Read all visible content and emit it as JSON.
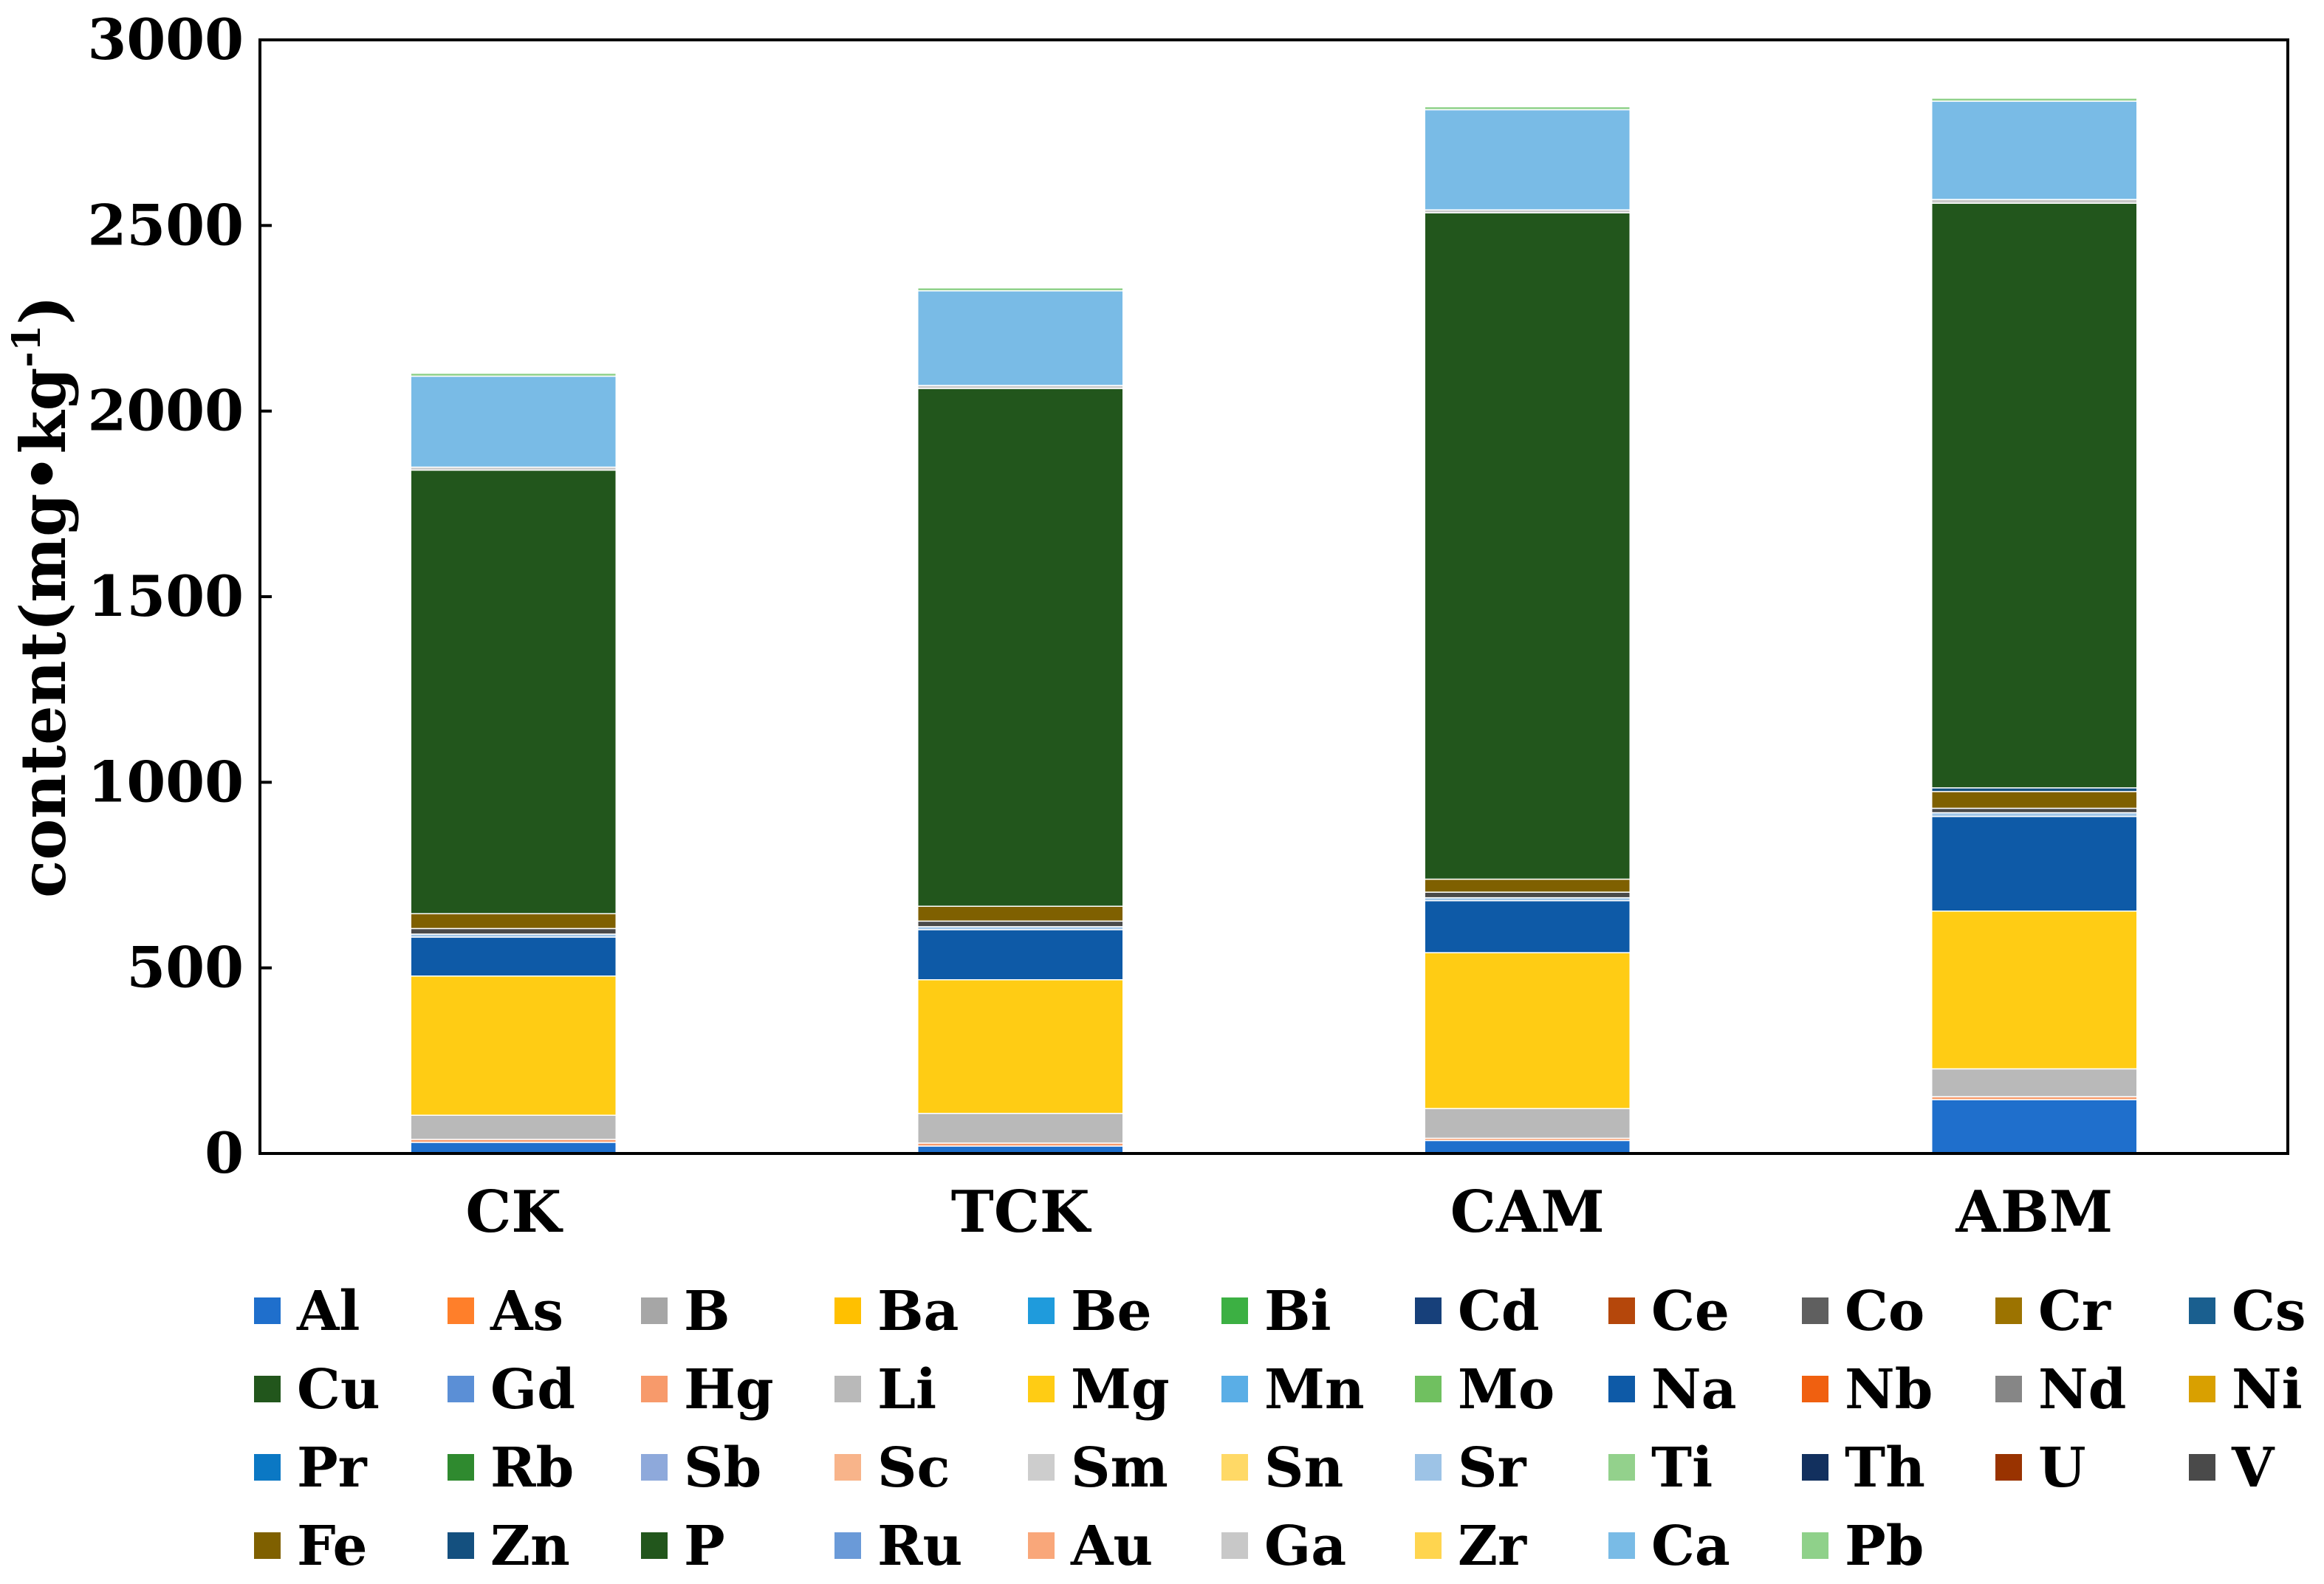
{
  "chart_data": {
    "type": "bar",
    "stacked": true,
    "categories": [
      "CK",
      "TCK",
      "CAM",
      "ABM"
    ],
    "ylabel": "content(mg•kg",
    "ylabel_sup": "-1",
    "ylabel_close": ")",
    "ylim": [
      0,
      3000
    ],
    "yticks": [
      0,
      500,
      1000,
      1500,
      2000,
      2500,
      3000
    ],
    "grid": false,
    "legend_position": "bottom",
    "series": [
      {
        "name": "Al",
        "color": "#1f6fcc",
        "values": [
          30,
          20,
          35,
          145
        ]
      },
      {
        "name": "As",
        "color": "#ff7f2a",
        "values": [
          0,
          0,
          0,
          0
        ]
      },
      {
        "name": "B",
        "color": "#a6a6a6",
        "values": [
          0,
          0,
          0,
          0
        ]
      },
      {
        "name": "Ba",
        "color": "#ffc000",
        "values": [
          0,
          0,
          0,
          0
        ]
      },
      {
        "name": "Be",
        "color": "#1f9bdc",
        "values": [
          0,
          0,
          0,
          0
        ]
      },
      {
        "name": "Bi",
        "color": "#3cb043",
        "values": [
          0,
          0,
          0,
          0
        ]
      },
      {
        "name": "Cd",
        "color": "#17407a",
        "values": [
          0,
          0,
          0,
          0
        ]
      },
      {
        "name": "Ce",
        "color": "#b5470b",
        "values": [
          0,
          0,
          0,
          0
        ]
      },
      {
        "name": "Co",
        "color": "#5f5f5f",
        "values": [
          0,
          0,
          0,
          0
        ]
      },
      {
        "name": "Cr",
        "color": "#9c7300",
        "values": [
          0,
          0,
          0,
          0
        ]
      },
      {
        "name": "Cs",
        "color": "#1a5f8f",
        "values": [
          0,
          0,
          0,
          0
        ]
      },
      {
        "name": "Cu",
        "color": "#22561c",
        "values": [
          0,
          0,
          0,
          0
        ]
      },
      {
        "name": "Gd",
        "color": "#5b8fd6",
        "values": [
          0,
          0,
          0,
          0
        ]
      },
      {
        "name": "Hg",
        "color": "#f79a6b",
        "values": [
          8,
          8,
          6,
          8
        ]
      },
      {
        "name": "Li",
        "color": "#b9b9b9",
        "values": [
          65,
          80,
          80,
          75
        ]
      },
      {
        "name": "Mg",
        "color": "#ffcc14",
        "values": [
          375,
          360,
          420,
          425
        ]
      },
      {
        "name": "Mn",
        "color": "#5aaee6",
        "values": [
          0,
          0,
          0,
          0
        ]
      },
      {
        "name": "Mo",
        "color": "#70c060",
        "values": [
          0,
          0,
          0,
          0
        ]
      },
      {
        "name": "Na",
        "color": "#0e5aa7",
        "values": [
          105,
          135,
          140,
          255
        ]
      },
      {
        "name": "Nb",
        "color": "#f06010",
        "values": [
          0,
          0,
          0,
          0
        ]
      },
      {
        "name": "Nd",
        "color": "#868686",
        "values": [
          0,
          0,
          0,
          0
        ]
      },
      {
        "name": "Ni",
        "color": "#d9a000",
        "values": [
          0,
          0,
          0,
          0
        ]
      },
      {
        "name": "Pr",
        "color": "#0b78c4",
        "values": [
          0,
          0,
          0,
          0
        ]
      },
      {
        "name": "Rb",
        "color": "#2f8a2f",
        "values": [
          0,
          0,
          0,
          0
        ]
      },
      {
        "name": "Sb",
        "color": "#8ea9db",
        "values": [
          0,
          0,
          0,
          0
        ]
      },
      {
        "name": "Sc",
        "color": "#f8b48a",
        "values": [
          0,
          0,
          0,
          0
        ]
      },
      {
        "name": "Sm",
        "color": "#cdcdcd",
        "values": [
          0,
          0,
          0,
          0
        ]
      },
      {
        "name": "Sn",
        "color": "#ffd966",
        "values": [
          0,
          0,
          0,
          0
        ]
      },
      {
        "name": "Sr",
        "color": "#9dc3e6",
        "values": [
          8,
          8,
          8,
          10
        ]
      },
      {
        "name": "Ti",
        "color": "#93d18c",
        "values": [
          0,
          0,
          0,
          0
        ]
      },
      {
        "name": "Th",
        "color": "#12305e",
        "values": [
          0,
          0,
          0,
          0
        ]
      },
      {
        "name": "U",
        "color": "#993300",
        "values": [
          0,
          0,
          0,
          0
        ]
      },
      {
        "name": "V",
        "color": "#4a4a4a",
        "values": [
          15,
          15,
          15,
          12
        ]
      },
      {
        "name": "Fe",
        "color": "#7f6000",
        "values": [
          40,
          40,
          35,
          45
        ]
      },
      {
        "name": "Zn",
        "color": "#14507f",
        "values": [
          0,
          0,
          0,
          10
        ]
      },
      {
        "name": "P",
        "color": "#22561c",
        "values": [
          1195,
          1395,
          1795,
          1575
        ]
      },
      {
        "name": "Ru",
        "color": "#6a9ad8",
        "values": [
          0,
          0,
          0,
          0
        ]
      },
      {
        "name": "Au",
        "color": "#f9a77a",
        "values": [
          0,
          0,
          0,
          0
        ]
      },
      {
        "name": "Ga",
        "color": "#c8c8c8",
        "values": [
          8,
          8,
          8,
          10
        ]
      },
      {
        "name": "Zr",
        "color": "#ffd54f",
        "values": [
          0,
          0,
          0,
          0
        ]
      },
      {
        "name": "Ca",
        "color": "#79bbe6",
        "values": [
          245,
          255,
          270,
          265
        ]
      },
      {
        "name": "Pb",
        "color": "#8fd18a",
        "values": [
          8,
          8,
          8,
          8
        ]
      }
    ]
  }
}
